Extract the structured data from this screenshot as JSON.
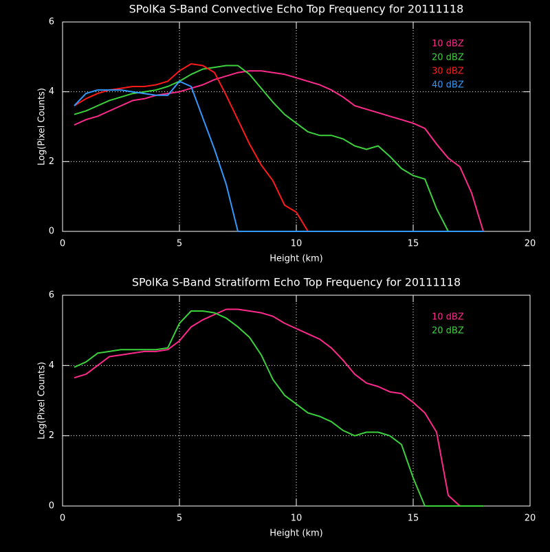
{
  "chart_data": [
    {
      "type": "line",
      "title": "SPolKa S-Band Convective Echo Top Frequency for 20111118",
      "x_label": "Height (km)",
      "y_label": "Log(Pixel Counts)",
      "xlim": [
        0,
        20
      ],
      "xticks": [
        0,
        5,
        10,
        15,
        20
      ],
      "ylim": [
        0,
        6
      ],
      "yticks": [
        0,
        2,
        4,
        6
      ],
      "grid": true,
      "legend": "upper right",
      "x": [
        0.5,
        1,
        1.5,
        2,
        2.5,
        3,
        3.5,
        4,
        4.5,
        5,
        5.5,
        6,
        6.5,
        7,
        7.5,
        8,
        8.5,
        9,
        9.5,
        10,
        10.5,
        11,
        11.5,
        12,
        12.5,
        13,
        13.5,
        14,
        14.5,
        15,
        15.5,
        16,
        16.5,
        17,
        17.5,
        18
      ],
      "series": [
        {
          "name": "10 dBZ",
          "color": "#ff2a8c",
          "values": [
            3.05,
            3.2,
            3.3,
            3.45,
            3.6,
            3.75,
            3.8,
            3.9,
            3.95,
            4.0,
            4.1,
            4.2,
            4.35,
            4.45,
            4.55,
            4.6,
            4.6,
            4.55,
            4.5,
            4.4,
            4.3,
            4.2,
            4.05,
            3.85,
            3.6,
            3.5,
            3.4,
            3.3,
            3.2,
            3.1,
            2.95,
            2.5,
            2.1,
            1.85,
            1.1,
            0
          ]
        },
        {
          "name": "20 dBZ",
          "color": "#3cd23c",
          "values": [
            3.35,
            3.45,
            3.6,
            3.75,
            3.85,
            3.95,
            4.0,
            4.05,
            4.15,
            4.3,
            4.5,
            4.65,
            4.7,
            4.75,
            4.75,
            4.5,
            4.1,
            3.7,
            3.35,
            3.1,
            2.85,
            2.75,
            2.75,
            2.65,
            2.45,
            2.35,
            2.45,
            2.15,
            1.8,
            1.6,
            1.5,
            0.65,
            0,
            0,
            0,
            0
          ]
        },
        {
          "name": "30 dBZ",
          "color": "#ff1a1a",
          "values": [
            3.6,
            3.8,
            3.95,
            4.05,
            4.1,
            4.15,
            4.15,
            4.2,
            4.3,
            4.6,
            4.8,
            4.75,
            4.55,
            3.9,
            3.2,
            2.5,
            1.9,
            1.45,
            0.75,
            0.55,
            0,
            0,
            0,
            0,
            0,
            0,
            0,
            0,
            0,
            0,
            0,
            0,
            0,
            0,
            0,
            0
          ]
        },
        {
          "name": "40 dBZ",
          "color": "#3399ff",
          "values": [
            3.6,
            3.95,
            4.05,
            4.05,
            4.05,
            4.0,
            3.95,
            3.9,
            3.9,
            4.3,
            4.15,
            3.25,
            2.35,
            1.35,
            0,
            0,
            0,
            0,
            0,
            0,
            0,
            0,
            0,
            0,
            0,
            0,
            0,
            0,
            0,
            0,
            0,
            0,
            0,
            0,
            0,
            0
          ]
        }
      ]
    },
    {
      "type": "line",
      "title": "SPolKa S-Band Stratiform Echo Top Frequency for 20111118",
      "x_label": "Height (km)",
      "y_label": "Log(Pixel Counts)",
      "xlim": [
        0,
        20
      ],
      "xticks": [
        0,
        5,
        10,
        15,
        20
      ],
      "ylim": [
        0,
        6
      ],
      "yticks": [
        0,
        2,
        4,
        6
      ],
      "grid": true,
      "legend": "upper right",
      "x": [
        0.5,
        1,
        1.5,
        2,
        2.5,
        3,
        3.5,
        4,
        4.5,
        5,
        5.5,
        6,
        6.5,
        7,
        7.5,
        8,
        8.5,
        9,
        9.5,
        10,
        10.5,
        11,
        11.5,
        12,
        12.5,
        13,
        13.5,
        14,
        14.5,
        15,
        15.5,
        16,
        16.5,
        17,
        17.5,
        18
      ],
      "series": [
        {
          "name": "10 dBZ",
          "color": "#ff2a8c",
          "values": [
            3.65,
            3.75,
            4.0,
            4.25,
            4.3,
            4.35,
            4.4,
            4.4,
            4.45,
            4.7,
            5.1,
            5.3,
            5.45,
            5.6,
            5.6,
            5.55,
            5.5,
            5.4,
            5.2,
            5.05,
            4.9,
            4.75,
            4.5,
            4.15,
            3.75,
            3.5,
            3.4,
            3.25,
            3.2,
            2.95,
            2.65,
            2.1,
            0.3,
            0,
            null,
            null
          ]
        },
        {
          "name": "20 dBZ",
          "color": "#3cd23c",
          "values": [
            3.95,
            4.1,
            4.35,
            4.4,
            4.45,
            4.45,
            4.45,
            4.45,
            4.5,
            5.2,
            5.55,
            5.55,
            5.5,
            5.35,
            5.1,
            4.8,
            4.3,
            3.6,
            3.15,
            2.9,
            2.65,
            2.55,
            2.4,
            2.15,
            2.0,
            2.1,
            2.1,
            2.0,
            1.75,
            0.8,
            0,
            0,
            0,
            0,
            0,
            0
          ]
        }
      ]
    }
  ]
}
